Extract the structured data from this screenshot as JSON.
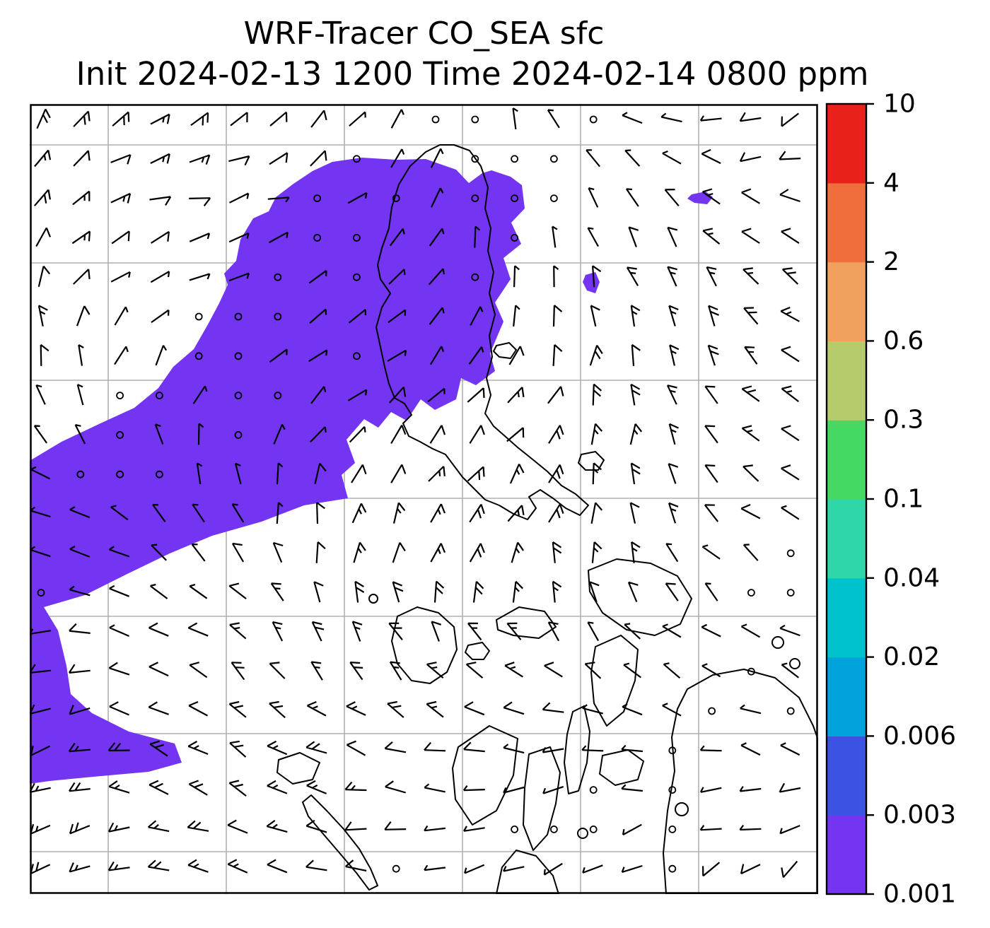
{
  "chart_data": {
    "type": "heatmap",
    "variant": "filled-contour tracer map with wind barbs, coastlines and lat-lon gridlines",
    "title": "WRF-Tracer CO_SEA sfc",
    "subtitle": "Init 2024-02-13 1200 Time 2024-02-14 0800 ppm",
    "init_time": "2024-02-13 1200",
    "valid_time": "2024-02-14 0800",
    "units": "ppm",
    "colorbar": {
      "orientation": "vertical",
      "side": "right",
      "levels": [
        0.001,
        0.003,
        0.006,
        0.02,
        0.04,
        0.1,
        0.3,
        0.6,
        2,
        4,
        10
      ],
      "tick_labels": [
        "0.001",
        "0.003",
        "0.006",
        "0.02",
        "0.04",
        "0.1",
        "0.3",
        "0.6",
        "2",
        "4",
        "10"
      ],
      "band_colors_bottom_to_top": [
        "#7335f2",
        "#3b52e2",
        "#00a2dc",
        "#00c2cd",
        "#2fd6a7",
        "#45d963",
        "#b6cc6c",
        "#f2a05e",
        "#ef6e3b",
        "#e8221b"
      ]
    },
    "filled_contours": [
      {
        "range_ppm": "0.001 - 0.003",
        "color": "#7335f2",
        "extent": "large plume over the north-central and western part of the domain reaching the western boundary, with a narrow band along the west edge and two small isolated patches to the east"
      }
    ],
    "overlays": {
      "wind_barbs_color": "#000000",
      "coastline_color": "#000000",
      "gridline_color": "#b0b0b0",
      "gridlines": "on"
    }
  }
}
